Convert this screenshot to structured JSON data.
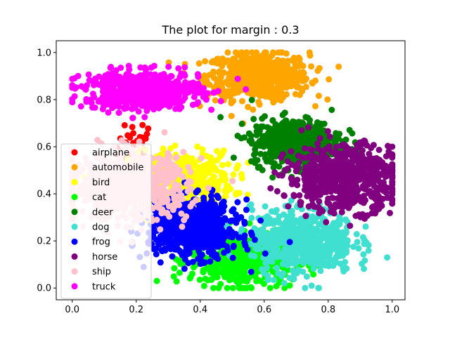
{
  "chart_data": {
    "type": "scatter",
    "title": "The plot for margin : 0.3",
    "xlabel": "",
    "ylabel": "",
    "xlim": [
      -0.05,
      1.04
    ],
    "ylim": [
      -0.05,
      1.05
    ],
    "x_ticks": [
      "0.0",
      "0.2",
      "0.4",
      "0.6",
      "0.8",
      "1.0"
    ],
    "y_ticks": [
      "0.0",
      "0.2",
      "0.4",
      "0.6",
      "0.8",
      "1.0"
    ],
    "grid": false,
    "legend_position": "lower-left",
    "series": [
      {
        "name": "airplane",
        "color": "#ff0000",
        "center": [
          0.2,
          0.6
        ],
        "spread": [
          0.03,
          0.06
        ],
        "count": 40
      },
      {
        "name": "automobile",
        "color": "#ffa500",
        "center": [
          0.58,
          0.9
        ],
        "spread": [
          0.08,
          0.05
        ],
        "count": 650
      },
      {
        "name": "bird",
        "color": "#ffff00",
        "center": [
          0.34,
          0.46
        ],
        "spread": [
          0.08,
          0.06
        ],
        "count": 450
      },
      {
        "name": "cat",
        "color": "#00ff00",
        "center": [
          0.53,
          0.12
        ],
        "spread": [
          0.08,
          0.06
        ],
        "count": 500
      },
      {
        "name": "deer",
        "color": "#008000",
        "center": [
          0.7,
          0.62
        ],
        "spread": [
          0.07,
          0.05
        ],
        "count": 550
      },
      {
        "name": "dog",
        "color": "#40e0d0",
        "center": [
          0.72,
          0.2
        ],
        "spread": [
          0.08,
          0.07
        ],
        "count": 600
      },
      {
        "name": "frog",
        "color": "#0000ff",
        "center": [
          0.38,
          0.25
        ],
        "spread": [
          0.07,
          0.06
        ],
        "count": 700
      },
      {
        "name": "horse",
        "color": "#800080",
        "center": [
          0.85,
          0.47
        ],
        "spread": [
          0.09,
          0.07
        ],
        "count": 650
      },
      {
        "name": "ship",
        "color": "#ffc0cb",
        "center": [
          0.18,
          0.43
        ],
        "spread": [
          0.09,
          0.07
        ],
        "count": 700
      },
      {
        "name": "truck",
        "color": "#ff00ff",
        "center": [
          0.22,
          0.84
        ],
        "spread": [
          0.09,
          0.04
        ],
        "count": 650
      }
    ]
  }
}
